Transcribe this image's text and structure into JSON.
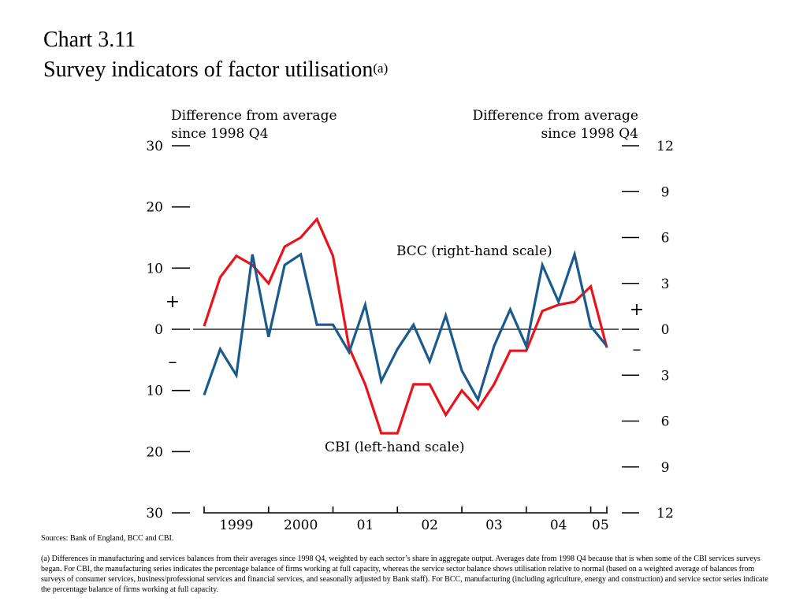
{
  "header": {
    "chart_number": "Chart 3.11",
    "title": "Survey indicators of factor utilisation",
    "title_note": "(a)"
  },
  "chart_data": {
    "type": "line",
    "left_axis_label": [
      "Difference from average",
      "since 1998 Q4"
    ],
    "right_axis_label": [
      "Difference from average",
      "since 1998 Q4"
    ],
    "left_ylim": [
      -30,
      30
    ],
    "right_ylim": [
      -12,
      12
    ],
    "left_ticks": [
      30,
      20,
      10,
      0,
      10,
      20,
      30
    ],
    "right_ticks": [
      12,
      9,
      6,
      3,
      0,
      3,
      6,
      9,
      12
    ],
    "x_tick_labels": [
      "1999",
      "2000",
      "01",
      "02",
      "03",
      "04",
      "05"
    ],
    "sign_plus": "+",
    "sign_minus": "–",
    "grid": false,
    "legend": "inline labels",
    "zero_line": true,
    "series": [
      {
        "name": "CBI (left-hand scale)",
        "axis": "left",
        "color": "#e8141c",
        "x": [
          1998.75,
          1999.0,
          1999.25,
          1999.5,
          1999.75,
          2000.0,
          2000.25,
          2000.5,
          2000.75,
          2001.0,
          2001.25,
          2001.5,
          2001.75,
          2002.0,
          2002.25,
          2002.5,
          2002.75,
          2003.0,
          2003.25,
          2003.5,
          2003.75,
          2004.0,
          2004.25,
          2004.5,
          2004.75,
          2005.0
        ],
        "values": [
          0.5,
          8.5,
          12,
          10.5,
          7.5,
          13.5,
          15,
          18,
          12,
          -3,
          -9,
          -17,
          -17,
          -9,
          -9,
          -14,
          -10,
          -13,
          -9,
          -3.5,
          -3.5,
          3,
          4,
          4.5,
          7,
          -3
        ]
      },
      {
        "name": "BCC (right-hand scale)",
        "axis": "right",
        "color": "#1a5a8c",
        "x": [
          1998.75,
          1999.0,
          1999.25,
          1999.5,
          1999.75,
          2000.0,
          2000.25,
          2000.5,
          2000.75,
          2001.0,
          2001.25,
          2001.5,
          2001.75,
          2002.0,
          2002.25,
          2002.5,
          2002.75,
          2003.0,
          2003.25,
          2003.5,
          2003.75,
          2004.0,
          2004.25,
          2004.5,
          2004.75,
          2005.0
        ],
        "values": [
          -4.3,
          -1.3,
          -3,
          4.9,
          -0.5,
          4.2,
          4.9,
          0.3,
          0.3,
          -1.5,
          1.6,
          -3.4,
          -1.3,
          0.3,
          -2.1,
          0.9,
          -2.7,
          -4.6,
          -1.1,
          1.3,
          -1.1,
          4.2,
          1.8,
          4.9,
          0.2,
          -1.1
        ]
      }
    ]
  },
  "footer": {
    "sources": "Sources:  Bank of England, BCC and CBI.",
    "footnote": "(a)  Differences in manufacturing and services balances from their averages since 1998 Q4, weighted by each sector’s share in aggregate output.  Averages date from 1998 Q4 because that is when some of the CBI services surveys began.  For CBI, the manufacturing series indicates the percentage balance of firms working at full capacity, whereas the service sector balance shows utilisation relative to normal (based on a weighted average of balances from surveys of consumer services, business/professional services and financial services, and seasonally adjusted by Bank staff).  For BCC, manufacturing (including agriculture, energy and construction) and service sector series indicate the percentage balance of firms working at full capacity."
  }
}
